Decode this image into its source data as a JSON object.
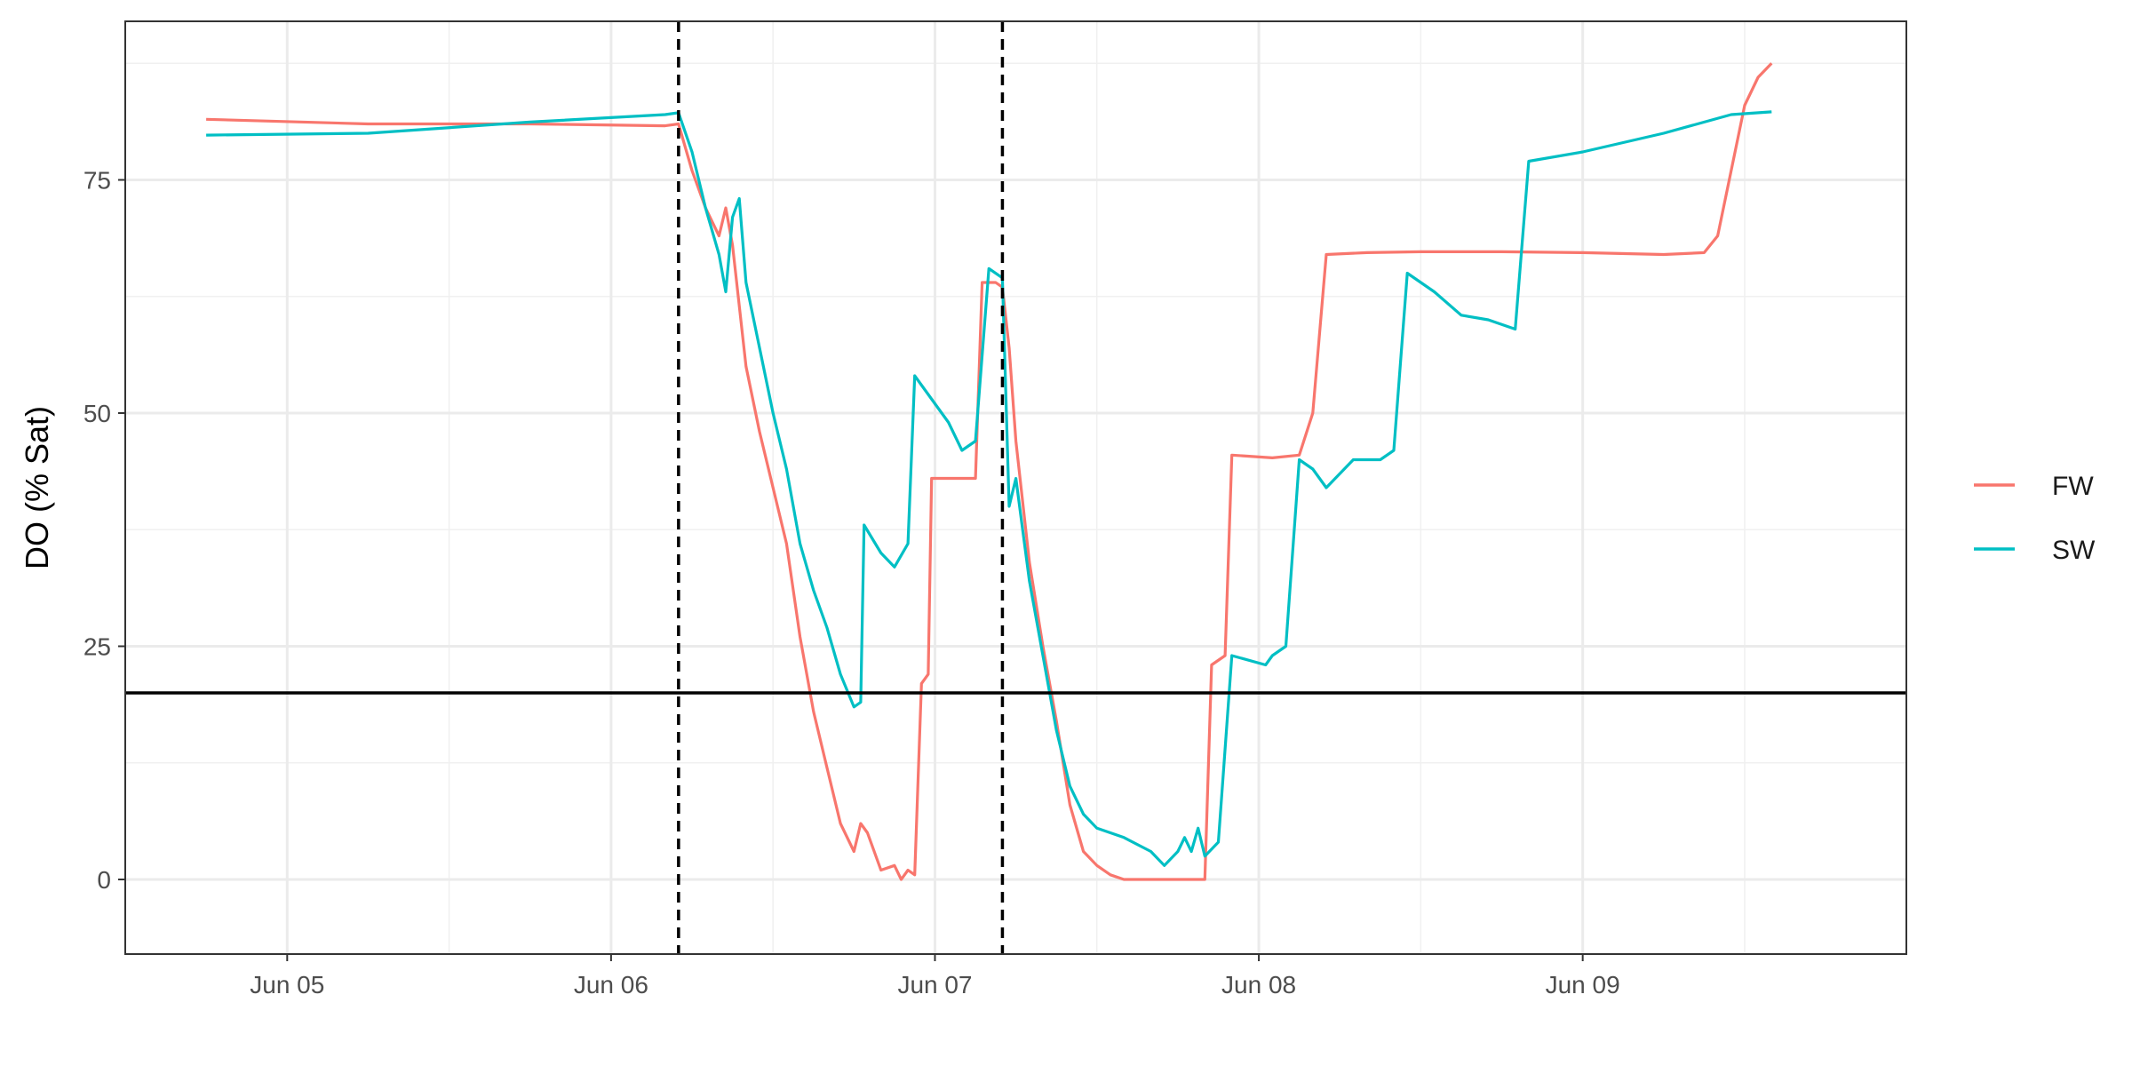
{
  "chart_data": {
    "type": "line",
    "title": "",
    "xlabel": "",
    "ylabel": "DO (% Sat)",
    "x_axis": {
      "type": "datetime",
      "range": [
        "2024-06-04T12:00",
        "2024-06-09T23:59"
      ],
      "ticks": [
        {
          "value": "2024-06-05T00:00",
          "label": "Jun 05"
        },
        {
          "value": "2024-06-06T00:00",
          "label": "Jun 06"
        },
        {
          "value": "2024-06-07T00:00",
          "label": "Jun 07"
        },
        {
          "value": "2024-06-08T00:00",
          "label": "Jun 08"
        },
        {
          "value": "2024-06-09T00:00",
          "label": "Jun 09"
        }
      ]
    },
    "y_axis": {
      "range": [
        -8,
        92
      ],
      "ticks": [
        0,
        25,
        50,
        75
      ],
      "minor_ticks": [
        12.5,
        37.5,
        62.5,
        87.5
      ]
    },
    "grid": true,
    "legend": "right",
    "reference_lines": {
      "horizontal": [
        {
          "y": 20,
          "style": "solid",
          "color": "#000000"
        }
      ],
      "vertical": [
        {
          "x": "2024-06-06T05:00",
          "style": "dashed",
          "color": "#000000"
        },
        {
          "x": "2024-06-07T05:00",
          "style": "dashed",
          "color": "#000000"
        }
      ]
    },
    "series": [
      {
        "name": "FW",
        "color": "#F8766D",
        "points": [
          [
            "2024-06-04T18:00",
            81.5
          ],
          [
            "2024-06-05T06:00",
            81.0
          ],
          [
            "2024-06-05T18:00",
            81.0
          ],
          [
            "2024-06-06T04:00",
            80.8
          ],
          [
            "2024-06-06T05:00",
            81.0
          ],
          [
            "2024-06-06T06:00",
            76.0
          ],
          [
            "2024-06-06T07:00",
            72.0
          ],
          [
            "2024-06-06T08:00",
            69.0
          ],
          [
            "2024-06-06T08:30",
            72.0
          ],
          [
            "2024-06-06T09:00",
            68.0
          ],
          [
            "2024-06-06T10:00",
            55.0
          ],
          [
            "2024-06-06T11:00",
            48.0
          ],
          [
            "2024-06-06T12:00",
            42.0
          ],
          [
            "2024-06-06T13:00",
            36.0
          ],
          [
            "2024-06-06T14:00",
            26.0
          ],
          [
            "2024-06-06T15:00",
            18.0
          ],
          [
            "2024-06-06T16:00",
            12.0
          ],
          [
            "2024-06-06T17:00",
            6.0
          ],
          [
            "2024-06-06T18:00",
            3.0
          ],
          [
            "2024-06-06T18:30",
            6.0
          ],
          [
            "2024-06-06T19:00",
            5.0
          ],
          [
            "2024-06-06T20:00",
            1.0
          ],
          [
            "2024-06-06T21:00",
            1.5
          ],
          [
            "2024-06-06T21:30",
            0.0
          ],
          [
            "2024-06-06T22:00",
            1.0
          ],
          [
            "2024-06-06T22:30",
            0.5
          ],
          [
            "2024-06-06T23:00",
            21.0
          ],
          [
            "2024-06-06T23:30",
            22.0
          ],
          [
            "2024-06-06T23:45",
            43.0
          ],
          [
            "2024-06-07T02:00",
            43.0
          ],
          [
            "2024-06-07T03:00",
            43.0
          ],
          [
            "2024-06-07T03:30",
            64.0
          ],
          [
            "2024-06-07T04:30",
            64.0
          ],
          [
            "2024-06-07T05:00",
            63.5
          ],
          [
            "2024-06-07T05:30",
            57.0
          ],
          [
            "2024-06-07T06:00",
            47.0
          ],
          [
            "2024-06-07T07:00",
            34.0
          ],
          [
            "2024-06-07T08:00",
            25.0
          ],
          [
            "2024-06-07T09:00",
            17.0
          ],
          [
            "2024-06-07T10:00",
            8.0
          ],
          [
            "2024-06-07T11:00",
            3.0
          ],
          [
            "2024-06-07T12:00",
            1.5
          ],
          [
            "2024-06-07T13:00",
            0.5
          ],
          [
            "2024-06-07T14:00",
            0.0
          ],
          [
            "2024-06-07T16:00",
            0.0
          ],
          [
            "2024-06-07T18:00",
            0.0
          ],
          [
            "2024-06-07T19:00",
            0.0
          ],
          [
            "2024-06-07T20:00",
            0.0
          ],
          [
            "2024-06-07T20:30",
            23.0
          ],
          [
            "2024-06-07T21:30",
            24.0
          ],
          [
            "2024-06-07T22:00",
            45.5
          ],
          [
            "2024-06-08T01:00",
            45.2
          ],
          [
            "2024-06-08T03:00",
            45.5
          ],
          [
            "2024-06-08T04:00",
            50.0
          ],
          [
            "2024-06-08T05:00",
            67.0
          ],
          [
            "2024-06-08T08:00",
            67.2
          ],
          [
            "2024-06-08T12:00",
            67.3
          ],
          [
            "2024-06-08T18:00",
            67.3
          ],
          [
            "2024-06-09T00:00",
            67.2
          ],
          [
            "2024-06-09T06:00",
            67.0
          ],
          [
            "2024-06-09T09:00",
            67.2
          ],
          [
            "2024-06-09T10:00",
            69.0
          ],
          [
            "2024-06-09T11:00",
            76.0
          ],
          [
            "2024-06-09T12:00",
            83.0
          ],
          [
            "2024-06-09T13:00",
            86.0
          ],
          [
            "2024-06-09T14:00",
            87.5
          ]
        ]
      },
      {
        "name": "SW",
        "color": "#00BFC4",
        "points": [
          [
            "2024-06-04T18:00",
            79.8
          ],
          [
            "2024-06-05T06:00",
            80.0
          ],
          [
            "2024-06-05T18:00",
            81.2
          ],
          [
            "2024-06-06T04:00",
            82.0
          ],
          [
            "2024-06-06T05:00",
            82.2
          ],
          [
            "2024-06-06T06:00",
            78.0
          ],
          [
            "2024-06-06T07:00",
            72.0
          ],
          [
            "2024-06-06T08:00",
            67.0
          ],
          [
            "2024-06-06T08:30",
            63.0
          ],
          [
            "2024-06-06T09:00",
            71.0
          ],
          [
            "2024-06-06T09:30",
            73.0
          ],
          [
            "2024-06-06T10:00",
            64.0
          ],
          [
            "2024-06-06T11:00",
            57.0
          ],
          [
            "2024-06-06T12:00",
            50.0
          ],
          [
            "2024-06-06T13:00",
            44.0
          ],
          [
            "2024-06-06T14:00",
            36.0
          ],
          [
            "2024-06-06T15:00",
            31.0
          ],
          [
            "2024-06-06T16:00",
            27.0
          ],
          [
            "2024-06-06T17:00",
            22.0
          ],
          [
            "2024-06-06T18:00",
            18.5
          ],
          [
            "2024-06-06T18:30",
            19.0
          ],
          [
            "2024-06-06T18:45",
            38.0
          ],
          [
            "2024-06-06T20:00",
            35.0
          ],
          [
            "2024-06-06T21:00",
            33.5
          ],
          [
            "2024-06-06T22:00",
            36.0
          ],
          [
            "2024-06-06T22:30",
            54.0
          ],
          [
            "2024-06-07T00:00",
            51.0
          ],
          [
            "2024-06-07T01:00",
            49.0
          ],
          [
            "2024-06-07T02:00",
            46.0
          ],
          [
            "2024-06-07T03:00",
            47.0
          ],
          [
            "2024-06-07T04:00",
            65.5
          ],
          [
            "2024-06-07T05:00",
            64.5
          ],
          [
            "2024-06-07T05:30",
            40.0
          ],
          [
            "2024-06-07T06:00",
            43.0
          ],
          [
            "2024-06-07T07:00",
            32.0
          ],
          [
            "2024-06-07T08:00",
            24.0
          ],
          [
            "2024-06-07T09:00",
            16.0
          ],
          [
            "2024-06-07T10:00",
            10.0
          ],
          [
            "2024-06-07T11:00",
            7.0
          ],
          [
            "2024-06-07T12:00",
            5.5
          ],
          [
            "2024-06-07T14:00",
            4.5
          ],
          [
            "2024-06-07T16:00",
            3.0
          ],
          [
            "2024-06-07T17:00",
            1.5
          ],
          [
            "2024-06-07T18:00",
            3.0
          ],
          [
            "2024-06-07T18:30",
            4.5
          ],
          [
            "2024-06-07T19:00",
            3.0
          ],
          [
            "2024-06-07T19:30",
            5.5
          ],
          [
            "2024-06-07T20:00",
            2.5
          ],
          [
            "2024-06-07T21:00",
            4.0
          ],
          [
            "2024-06-07T22:00",
            24.0
          ],
          [
            "2024-06-08T00:30",
            23.0
          ],
          [
            "2024-06-08T01:00",
            24.0
          ],
          [
            "2024-06-08T02:00",
            25.0
          ],
          [
            "2024-06-08T03:00",
            45.0
          ],
          [
            "2024-06-08T04:00",
            44.0
          ],
          [
            "2024-06-08T05:00",
            42.0
          ],
          [
            "2024-06-08T07:00",
            45.0
          ],
          [
            "2024-06-08T09:00",
            45.0
          ],
          [
            "2024-06-08T10:00",
            46.0
          ],
          [
            "2024-06-08T11:00",
            65.0
          ],
          [
            "2024-06-08T13:00",
            63.0
          ],
          [
            "2024-06-08T15:00",
            60.5
          ],
          [
            "2024-06-08T17:00",
            60.0
          ],
          [
            "2024-06-08T19:00",
            59.0
          ],
          [
            "2024-06-08T20:00",
            77.0
          ],
          [
            "2024-06-09T00:00",
            78.0
          ],
          [
            "2024-06-09T06:00",
            80.0
          ],
          [
            "2024-06-09T11:00",
            82.0
          ],
          [
            "2024-06-09T14:00",
            82.3
          ]
        ]
      }
    ]
  }
}
